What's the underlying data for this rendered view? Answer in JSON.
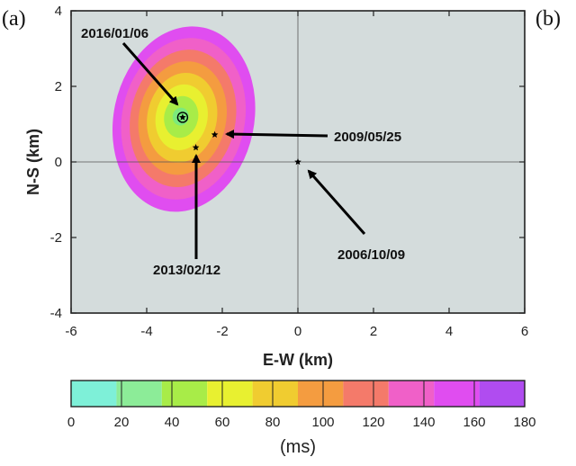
{
  "chart_data": {
    "type": "heatmap",
    "panel_labels": [
      "(a)",
      "(b)"
    ],
    "xlabel": "E-W (km)",
    "ylabel": "N-S (km)",
    "xlim": [
      -6,
      6
    ],
    "ylim": [
      -4,
      4
    ],
    "xticks": [
      "-6",
      "-4",
      "-2",
      "0",
      "2",
      "4",
      "6"
    ],
    "yticks": [
      "4",
      "2",
      "0",
      "-2",
      "-4"
    ],
    "xtick_values": [
      -6,
      -4,
      -2,
      0,
      2,
      4,
      6
    ],
    "ytick_values": [
      4,
      2,
      0,
      -2,
      -4
    ],
    "grid": "zero lines only",
    "background_color": "#d4dcdc",
    "contour": {
      "center": [
        -3.1,
        1.2
      ],
      "band_step": 20,
      "bands_ms": [
        160,
        140,
        120,
        100,
        80,
        60,
        40,
        20
      ],
      "band_colors": [
        "#e04df0",
        "#f060c8",
        "#f47a6a",
        "#f49c40",
        "#f0cc30",
        "#e8f030",
        "#a8ec48",
        "#7cea7c"
      ]
    },
    "events": [
      {
        "label": "2016/01/06",
        "x": -3.05,
        "y": 1.18,
        "symbol": "circled-star"
      },
      {
        "label": "2009/05/25",
        "x": -2.2,
        "y": 0.72,
        "symbol": "star"
      },
      {
        "label": "2013/02/12",
        "x": -2.7,
        "y": 0.38,
        "symbol": "star"
      },
      {
        "label": "2006/10/09",
        "x": 0.0,
        "y": 0.0,
        "symbol": "star"
      }
    ],
    "colorbar": {
      "ticks": [
        "0",
        "20",
        "40",
        "60",
        "80",
        "100",
        "120",
        "140",
        "160",
        "180"
      ],
      "colors": [
        "#7ef0d8",
        "#8cec98",
        "#a8ec48",
        "#e8f030",
        "#f0cc30",
        "#f49c40",
        "#f47a6a",
        "#f060c8",
        "#e04df0",
        "#b04cf0"
      ],
      "unit": "(ms)"
    }
  }
}
